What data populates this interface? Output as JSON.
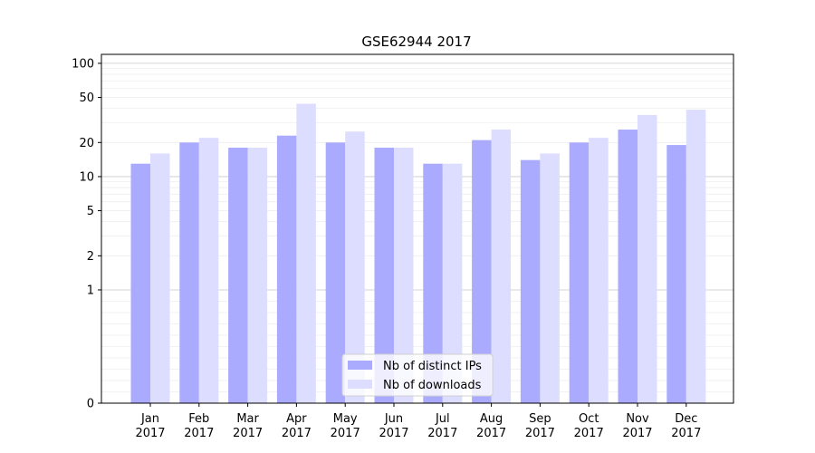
{
  "chart_data": {
    "type": "bar",
    "title": "GSE62944 2017",
    "xlabel": "",
    "ylabel": "",
    "y_scale": "symlog",
    "ylim": [
      0,
      120
    ],
    "y_ticks": [
      {
        "value": 0,
        "label": "0"
      },
      {
        "value": 1,
        "label": "1"
      },
      {
        "value": 2,
        "label": "2"
      },
      {
        "value": 5,
        "label": "5"
      },
      {
        "value": 10,
        "label": "10"
      },
      {
        "value": 20,
        "label": "20"
      },
      {
        "value": 50,
        "label": "50"
      },
      {
        "value": 100,
        "label": "100"
      }
    ],
    "grid": true,
    "legend_position": "bottom-center",
    "categories": [
      {
        "month": "Jan",
        "year": "2017"
      },
      {
        "month": "Feb",
        "year": "2017"
      },
      {
        "month": "Mar",
        "year": "2017"
      },
      {
        "month": "Apr",
        "year": "2017"
      },
      {
        "month": "May",
        "year": "2017"
      },
      {
        "month": "Jun",
        "year": "2017"
      },
      {
        "month": "Jul",
        "year": "2017"
      },
      {
        "month": "Aug",
        "year": "2017"
      },
      {
        "month": "Sep",
        "year": "2017"
      },
      {
        "month": "Oct",
        "year": "2017"
      },
      {
        "month": "Nov",
        "year": "2017"
      },
      {
        "month": "Dec",
        "year": "2017"
      }
    ],
    "series": [
      {
        "name": "Nb of distinct IPs",
        "color": "#aaaaff",
        "values": [
          13,
          20,
          18,
          23,
          20,
          18,
          13,
          21,
          14,
          20,
          26,
          19
        ]
      },
      {
        "name": "Nb of downloads",
        "color": "#ddddff",
        "values": [
          16,
          22,
          18,
          44,
          25,
          18,
          13,
          26,
          16,
          22,
          35,
          39
        ]
      }
    ]
  }
}
